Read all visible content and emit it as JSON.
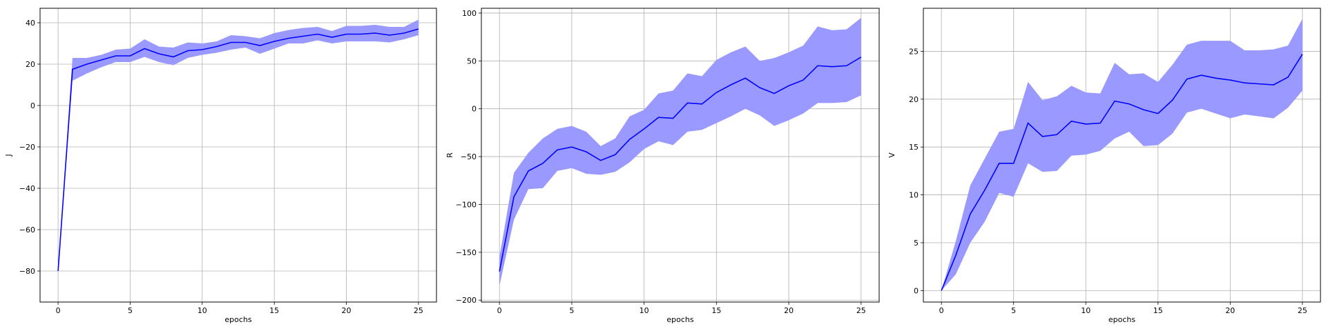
{
  "chart_data": [
    {
      "type": "line",
      "xlabel": "epochs",
      "ylabel": "J",
      "xlim": [
        -1.25,
        26.25
      ],
      "ylim": [
        -95,
        47
      ],
      "xticks": [
        0,
        5,
        10,
        15,
        20,
        25
      ],
      "yticks": [
        -80,
        -60,
        -40,
        -20,
        0,
        20,
        40
      ],
      "grid": true,
      "line_color": "#0000ff",
      "band_color": "#9999ff",
      "x": [
        0,
        1,
        2,
        3,
        4,
        5,
        6,
        7,
        8,
        9,
        10,
        11,
        12,
        13,
        14,
        15,
        16,
        17,
        18,
        19,
        20,
        21,
        22,
        23,
        24,
        25
      ],
      "mean": [
        -80,
        17.5,
        20,
        22,
        24,
        24,
        27.5,
        25,
        23.5,
        26.5,
        27,
        28.5,
        30.5,
        30.5,
        29,
        31,
        32.5,
        33.5,
        34.5,
        33,
        34.5,
        34.5,
        35,
        34,
        35,
        37
      ],
      "upper": [
        -80,
        23,
        23,
        24.5,
        27,
        27.5,
        32,
        28.5,
        28,
        30.5,
        30,
        31,
        34,
        33.5,
        32.5,
        35,
        36.5,
        37.5,
        38,
        36,
        38.5,
        38.5,
        39,
        38,
        38,
        41.5
      ],
      "lower": [
        -80,
        12,
        15.5,
        18.5,
        21,
        21,
        23.5,
        21,
        19.5,
        23,
        24.5,
        25.5,
        27,
        28,
        25,
        27.5,
        30,
        30,
        31.5,
        30,
        31,
        31,
        31,
        30.5,
        32,
        34
      ]
    },
    {
      "type": "line",
      "xlabel": "epochs",
      "ylabel": "R",
      "xlim": [
        -1.25,
        26.25
      ],
      "ylim": [
        -202,
        105
      ],
      "xticks": [
        0,
        5,
        10,
        15,
        20,
        25
      ],
      "yticks": [
        -200,
        -150,
        -100,
        -50,
        0,
        50,
        100
      ],
      "grid": true,
      "line_color": "#0000ff",
      "band_color": "#9999ff",
      "x": [
        0,
        1,
        2,
        3,
        4,
        5,
        6,
        7,
        8,
        9,
        10,
        11,
        12,
        13,
        14,
        15,
        16,
        17,
        18,
        19,
        20,
        21,
        22,
        23,
        24,
        25
      ],
      "mean": [
        -170,
        -92,
        -65,
        -57,
        -43,
        -40,
        -45,
        -54,
        -48,
        -32,
        -21,
        -9,
        -10,
        6,
        5,
        17,
        25,
        32,
        22,
        16,
        24,
        30,
        45,
        44,
        45,
        54
      ],
      "upper": [
        -155,
        -67,
        -46,
        -31,
        -21,
        -18,
        -24,
        -39,
        -31,
        -8,
        -1,
        16,
        19,
        37,
        34,
        51,
        59,
        65,
        50,
        53,
        59,
        66,
        86,
        82,
        83,
        95
      ],
      "lower": [
        -185,
        -116,
        -84,
        -83,
        -65,
        -62,
        -68,
        -69,
        -66,
        -56,
        -42,
        -34,
        -38,
        -24,
        -22,
        -15,
        -8,
        0,
        -7,
        -18,
        -12,
        -5,
        6,
        6,
        7,
        14
      ]
    },
    {
      "type": "line",
      "xlabel": "epochs",
      "ylabel": "V",
      "xlim": [
        -1.25,
        26.25
      ],
      "ylim": [
        -1.2,
        29.5
      ],
      "xticks": [
        0,
        5,
        10,
        15,
        20,
        25
      ],
      "yticks": [
        0,
        5,
        10,
        15,
        20,
        25
      ],
      "grid": true,
      "line_color": "#0000ff",
      "band_color": "#9999ff",
      "x": [
        0,
        1,
        2,
        3,
        4,
        5,
        6,
        7,
        8,
        9,
        10,
        11,
        12,
        13,
        14,
        15,
        16,
        17,
        18,
        19,
        20,
        21,
        22,
        23,
        24,
        25
      ],
      "mean": [
        0,
        3.7,
        8,
        10.5,
        13.3,
        13.3,
        17.5,
        16.1,
        16.3,
        17.7,
        17.4,
        17.5,
        19.8,
        19.5,
        18.9,
        18.5,
        19.9,
        22.1,
        22.5,
        22.2,
        22,
        21.7,
        21.6,
        21.5,
        22.3,
        24.7
      ],
      "upper": [
        0,
        5.2,
        11,
        13.8,
        16.6,
        16.9,
        21.8,
        19.9,
        20.3,
        21.4,
        20.7,
        20.6,
        23.8,
        22.6,
        22.7,
        21.8,
        23.6,
        25.7,
        26.1,
        26.1,
        26.1,
        25.1,
        25.1,
        25.2,
        25.6,
        28.4
      ],
      "lower": [
        0,
        1.7,
        5,
        7.2,
        10.2,
        9.8,
        13.3,
        12.4,
        12.5,
        14.1,
        14.2,
        14.6,
        15.9,
        16.6,
        15.1,
        15.2,
        16.4,
        18.6,
        19,
        18.5,
        18,
        18.4,
        18.2,
        18,
        19.1,
        20.9
      ]
    }
  ]
}
